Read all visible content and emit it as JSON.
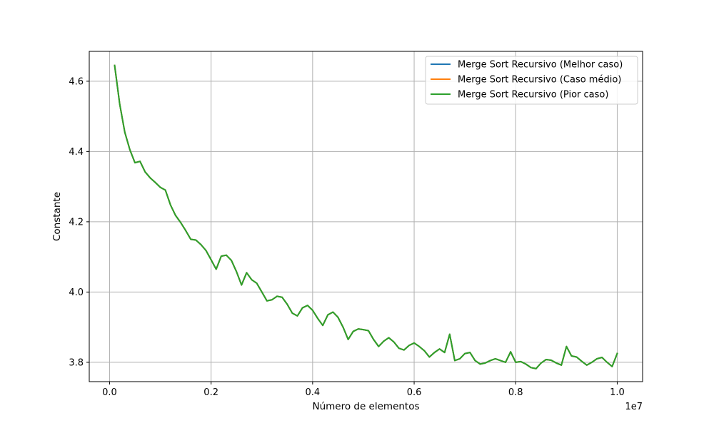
{
  "chart_data": {
    "type": "line",
    "title": "",
    "xlabel": "Número de elementos",
    "ylabel": "Constante",
    "x_offset_label": "1e7",
    "xlim": [
      -0.04,
      1.05
    ],
    "ylim": [
      3.745,
      4.685
    ],
    "grid": true,
    "legend_position": "top-right",
    "x_ticks": [
      0.0,
      0.2,
      0.4,
      0.6,
      0.8,
      1.0
    ],
    "x_tick_labels": [
      "0.0",
      "0.2",
      "0.4",
      "0.6",
      "0.8",
      "1.0"
    ],
    "y_ticks": [
      3.8,
      4.0,
      4.2,
      4.4,
      4.6
    ],
    "y_tick_labels": [
      "3.8",
      "4.0",
      "4.2",
      "4.4",
      "4.6"
    ],
    "x": [
      0.01,
      0.02,
      0.03,
      0.04,
      0.05,
      0.06,
      0.07,
      0.08,
      0.09,
      0.1,
      0.11,
      0.12,
      0.13,
      0.14,
      0.15,
      0.16,
      0.17,
      0.18,
      0.19,
      0.2,
      0.21,
      0.22,
      0.23,
      0.24,
      0.25,
      0.26,
      0.27,
      0.28,
      0.29,
      0.3,
      0.31,
      0.32,
      0.33,
      0.34,
      0.35,
      0.36,
      0.37,
      0.38,
      0.39,
      0.4,
      0.41,
      0.42,
      0.43,
      0.44,
      0.45,
      0.46,
      0.47,
      0.48,
      0.49,
      0.5,
      0.51,
      0.52,
      0.53,
      0.54,
      0.55,
      0.56,
      0.57,
      0.58,
      0.59,
      0.6,
      0.61,
      0.62,
      0.63,
      0.64,
      0.65,
      0.66,
      0.67,
      0.68,
      0.69,
      0.7,
      0.71,
      0.72,
      0.73,
      0.74,
      0.75,
      0.76,
      0.77,
      0.78,
      0.79,
      0.8,
      0.81,
      0.82,
      0.83,
      0.84,
      0.85,
      0.86,
      0.87,
      0.88,
      0.89,
      0.9,
      0.91,
      0.92,
      0.93,
      0.94,
      0.95,
      0.96,
      0.97,
      0.98,
      0.99,
      1.0
    ],
    "series": [
      {
        "name": "Merge Sort Recursivo (Melhor caso)",
        "color": "#1f77b4",
        "values": [
          4.645,
          4.535,
          4.455,
          4.405,
          4.368,
          4.372,
          4.342,
          4.325,
          4.312,
          4.298,
          4.29,
          4.248,
          4.218,
          4.198,
          4.175,
          4.15,
          4.148,
          4.135,
          4.118,
          4.092,
          4.065,
          4.102,
          4.105,
          4.09,
          4.058,
          4.02,
          4.055,
          4.035,
          4.025,
          4.0,
          3.975,
          3.978,
          3.988,
          3.985,
          3.965,
          3.94,
          3.932,
          3.955,
          3.962,
          3.948,
          3.925,
          3.905,
          3.935,
          3.943,
          3.928,
          3.9,
          3.865,
          3.888,
          3.895,
          3.893,
          3.89,
          3.865,
          3.845,
          3.86,
          3.87,
          3.858,
          3.84,
          3.835,
          3.848,
          3.855,
          3.845,
          3.833,
          3.815,
          3.828,
          3.838,
          3.828,
          3.88,
          3.805,
          3.81,
          3.825,
          3.828,
          3.805,
          3.795,
          3.798,
          3.805,
          3.81,
          3.805,
          3.8,
          3.83,
          3.8,
          3.802,
          3.795,
          3.785,
          3.782,
          3.798,
          3.808,
          3.806,
          3.798,
          3.792,
          3.845,
          3.818,
          3.815,
          3.803,
          3.792,
          3.8,
          3.81,
          3.814,
          3.8,
          3.788,
          3.825
        ]
      },
      {
        "name": "Merge Sort Recursivo (Caso médio)",
        "color": "#ff7f0e",
        "values": [
          4.645,
          4.535,
          4.455,
          4.405,
          4.368,
          4.372,
          4.342,
          4.325,
          4.312,
          4.298,
          4.29,
          4.248,
          4.218,
          4.198,
          4.175,
          4.15,
          4.148,
          4.135,
          4.118,
          4.092,
          4.065,
          4.102,
          4.105,
          4.09,
          4.058,
          4.02,
          4.055,
          4.035,
          4.025,
          4.0,
          3.975,
          3.978,
          3.988,
          3.985,
          3.965,
          3.94,
          3.932,
          3.955,
          3.962,
          3.948,
          3.925,
          3.905,
          3.935,
          3.943,
          3.928,
          3.9,
          3.865,
          3.888,
          3.895,
          3.893,
          3.89,
          3.865,
          3.845,
          3.86,
          3.87,
          3.858,
          3.84,
          3.835,
          3.848,
          3.855,
          3.845,
          3.833,
          3.815,
          3.828,
          3.838,
          3.828,
          3.88,
          3.805,
          3.81,
          3.825,
          3.828,
          3.805,
          3.795,
          3.798,
          3.805,
          3.81,
          3.805,
          3.8,
          3.83,
          3.8,
          3.802,
          3.795,
          3.785,
          3.782,
          3.798,
          3.808,
          3.806,
          3.798,
          3.792,
          3.845,
          3.818,
          3.815,
          3.803,
          3.792,
          3.8,
          3.81,
          3.814,
          3.8,
          3.788,
          3.825
        ]
      },
      {
        "name": "Merge Sort Recursivo (Pior caso)",
        "color": "#2ca02c",
        "values": [
          4.645,
          4.535,
          4.455,
          4.405,
          4.368,
          4.372,
          4.342,
          4.325,
          4.312,
          4.298,
          4.29,
          4.248,
          4.218,
          4.198,
          4.175,
          4.15,
          4.148,
          4.135,
          4.118,
          4.092,
          4.065,
          4.102,
          4.105,
          4.09,
          4.058,
          4.02,
          4.055,
          4.035,
          4.025,
          4.0,
          3.975,
          3.978,
          3.988,
          3.985,
          3.965,
          3.94,
          3.932,
          3.955,
          3.962,
          3.948,
          3.925,
          3.905,
          3.935,
          3.943,
          3.928,
          3.9,
          3.865,
          3.888,
          3.895,
          3.893,
          3.89,
          3.865,
          3.845,
          3.86,
          3.87,
          3.858,
          3.84,
          3.835,
          3.848,
          3.855,
          3.845,
          3.833,
          3.815,
          3.828,
          3.838,
          3.828,
          3.88,
          3.805,
          3.81,
          3.825,
          3.828,
          3.805,
          3.795,
          3.798,
          3.805,
          3.81,
          3.805,
          3.8,
          3.83,
          3.8,
          3.802,
          3.795,
          3.785,
          3.782,
          3.798,
          3.808,
          3.806,
          3.798,
          3.792,
          3.845,
          3.818,
          3.815,
          3.803,
          3.792,
          3.8,
          3.81,
          3.814,
          3.8,
          3.788,
          3.825
        ]
      }
    ]
  }
}
